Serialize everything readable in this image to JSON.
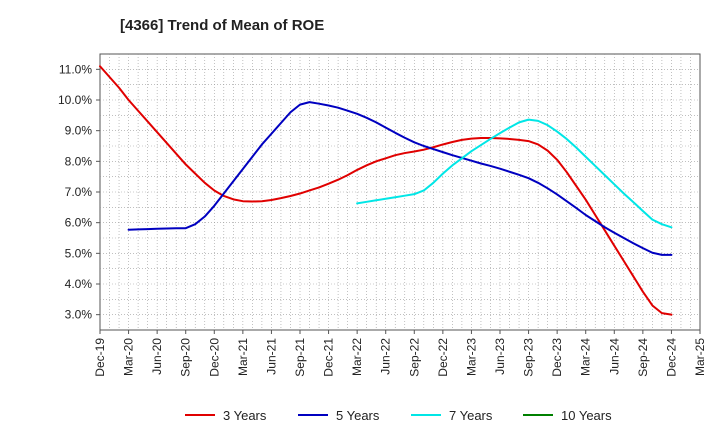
{
  "chart_data": {
    "type": "line",
    "title": "[4366]  Trend of Mean of ROE",
    "xlabel": "",
    "ylabel": "",
    "x_ticks": [
      "Dec-19",
      "Mar-20",
      "Jun-20",
      "Sep-20",
      "Dec-20",
      "Mar-21",
      "Jun-21",
      "Sep-21",
      "Dec-21",
      "Mar-22",
      "Jun-22",
      "Sep-22",
      "Dec-22",
      "Mar-23",
      "Jun-23",
      "Sep-23",
      "Dec-23",
      "Mar-24",
      "Jun-24",
      "Sep-24",
      "Dec-24",
      "Mar-25"
    ],
    "y_ticks": [
      "3.0%",
      "4.0%",
      "5.0%",
      "6.0%",
      "7.0%",
      "8.0%",
      "9.0%",
      "10.0%",
      "11.0%"
    ],
    "ylim": [
      2.5,
      11.5
    ],
    "grid": true,
    "legend_position": "bottom",
    "series": [
      {
        "name": "3 Years",
        "color": "#e00000",
        "points": [
          [
            "Dec-19",
            11.1
          ],
          [
            "Jan-20",
            10.75
          ],
          [
            "Feb-20",
            10.4
          ],
          [
            "Mar-20",
            10.0
          ],
          [
            "Apr-20",
            9.65
          ],
          [
            "May-20",
            9.3
          ],
          [
            "Jun-20",
            8.95
          ],
          [
            "Jul-20",
            8.6
          ],
          [
            "Aug-20",
            8.25
          ],
          [
            "Sep-20",
            7.9
          ],
          [
            "Oct-20",
            7.6
          ],
          [
            "Nov-20",
            7.3
          ],
          [
            "Dec-20",
            7.05
          ],
          [
            "Jan-21",
            6.87
          ],
          [
            "Feb-21",
            6.76
          ],
          [
            "Mar-21",
            6.7
          ],
          [
            "Apr-21",
            6.69
          ],
          [
            "May-21",
            6.7
          ],
          [
            "Jun-21",
            6.74
          ],
          [
            "Jul-21",
            6.8
          ],
          [
            "Aug-21",
            6.87
          ],
          [
            "Sep-21",
            6.95
          ],
          [
            "Oct-21",
            7.05
          ],
          [
            "Nov-21",
            7.15
          ],
          [
            "Dec-21",
            7.27
          ],
          [
            "Jan-22",
            7.4
          ],
          [
            "Feb-22",
            7.55
          ],
          [
            "Mar-22",
            7.72
          ],
          [
            "Apr-22",
            7.87
          ],
          [
            "May-22",
            8.0
          ],
          [
            "Jun-22",
            8.1
          ],
          [
            "Jul-22",
            8.2
          ],
          [
            "Aug-22",
            8.27
          ],
          [
            "Sep-22",
            8.32
          ],
          [
            "Oct-22",
            8.38
          ],
          [
            "Nov-22",
            8.46
          ],
          [
            "Dec-22",
            8.55
          ],
          [
            "Jan-23",
            8.63
          ],
          [
            "Feb-23",
            8.7
          ],
          [
            "Mar-23",
            8.74
          ],
          [
            "Apr-23",
            8.76
          ],
          [
            "May-23",
            8.76
          ],
          [
            "Jun-23",
            8.75
          ],
          [
            "Jul-23",
            8.73
          ],
          [
            "Aug-23",
            8.7
          ],
          [
            "Sep-23",
            8.66
          ],
          [
            "Oct-23",
            8.55
          ],
          [
            "Nov-23",
            8.35
          ],
          [
            "Dec-23",
            8.05
          ],
          [
            "Jan-24",
            7.65
          ],
          [
            "Feb-24",
            7.2
          ],
          [
            "Mar-24",
            6.75
          ],
          [
            "Apr-24",
            6.25
          ],
          [
            "May-24",
            5.75
          ],
          [
            "Jun-24",
            5.25
          ],
          [
            "Jul-24",
            4.75
          ],
          [
            "Aug-24",
            4.25
          ],
          [
            "Sep-24",
            3.75
          ],
          [
            "Oct-24",
            3.3
          ],
          [
            "Nov-24",
            3.05
          ],
          [
            "Dec-24",
            3.0
          ]
        ]
      },
      {
        "name": "5 Years",
        "color": "#0000c0",
        "points": [
          [
            "Mar-20",
            5.77
          ],
          [
            "Apr-20",
            5.78
          ],
          [
            "May-20",
            5.79
          ],
          [
            "Jun-20",
            5.8
          ],
          [
            "Jul-20",
            5.81
          ],
          [
            "Aug-20",
            5.82
          ],
          [
            "Sep-20",
            5.82
          ],
          [
            "Oct-20",
            5.95
          ],
          [
            "Nov-20",
            6.2
          ],
          [
            "Dec-20",
            6.55
          ],
          [
            "Jan-21",
            6.95
          ],
          [
            "Feb-21",
            7.35
          ],
          [
            "Mar-21",
            7.75
          ],
          [
            "Apr-21",
            8.15
          ],
          [
            "May-21",
            8.55
          ],
          [
            "Jun-21",
            8.9
          ],
          [
            "Jul-21",
            9.25
          ],
          [
            "Aug-21",
            9.6
          ],
          [
            "Sep-21",
            9.85
          ],
          [
            "Oct-21",
            9.93
          ],
          [
            "Nov-21",
            9.88
          ],
          [
            "Dec-21",
            9.82
          ],
          [
            "Jan-22",
            9.75
          ],
          [
            "Feb-22",
            9.65
          ],
          [
            "Mar-22",
            9.55
          ],
          [
            "Apr-22",
            9.42
          ],
          [
            "May-22",
            9.27
          ],
          [
            "Jun-22",
            9.1
          ],
          [
            "Jul-22",
            8.93
          ],
          [
            "Aug-22",
            8.77
          ],
          [
            "Sep-22",
            8.62
          ],
          [
            "Oct-22",
            8.5
          ],
          [
            "Nov-22",
            8.4
          ],
          [
            "Dec-22",
            8.3
          ],
          [
            "Jan-23",
            8.2
          ],
          [
            "Feb-23",
            8.11
          ],
          [
            "Mar-23",
            8.02
          ],
          [
            "Apr-23",
            7.93
          ],
          [
            "May-23",
            7.85
          ],
          [
            "Jun-23",
            7.76
          ],
          [
            "Jul-23",
            7.66
          ],
          [
            "Aug-23",
            7.56
          ],
          [
            "Sep-23",
            7.45
          ],
          [
            "Oct-23",
            7.3
          ],
          [
            "Nov-23",
            7.12
          ],
          [
            "Dec-23",
            6.92
          ],
          [
            "Jan-24",
            6.7
          ],
          [
            "Feb-24",
            6.48
          ],
          [
            "Mar-24",
            6.25
          ],
          [
            "Apr-24",
            6.05
          ],
          [
            "May-24",
            5.85
          ],
          [
            "Jun-24",
            5.67
          ],
          [
            "Jul-24",
            5.5
          ],
          [
            "Aug-24",
            5.33
          ],
          [
            "Sep-24",
            5.17
          ],
          [
            "Oct-24",
            5.02
          ],
          [
            "Nov-24",
            4.95
          ],
          [
            "Dec-24",
            4.95
          ]
        ]
      },
      {
        "name": "7 Years",
        "color": "#00e6e6",
        "points": [
          [
            "Mar-22",
            6.63
          ],
          [
            "Apr-22",
            6.68
          ],
          [
            "May-22",
            6.73
          ],
          [
            "Jun-22",
            6.78
          ],
          [
            "Jul-22",
            6.83
          ],
          [
            "Aug-22",
            6.88
          ],
          [
            "Sep-22",
            6.93
          ],
          [
            "Oct-22",
            7.05
          ],
          [
            "Nov-22",
            7.3
          ],
          [
            "Dec-22",
            7.6
          ],
          [
            "Jan-23",
            7.87
          ],
          [
            "Feb-23",
            8.1
          ],
          [
            "Mar-23",
            8.33
          ],
          [
            "Apr-23",
            8.53
          ],
          [
            "May-23",
            8.73
          ],
          [
            "Jun-23",
            8.92
          ],
          [
            "Jul-23",
            9.1
          ],
          [
            "Aug-23",
            9.27
          ],
          [
            "Sep-23",
            9.36
          ],
          [
            "Oct-23",
            9.32
          ],
          [
            "Nov-23",
            9.18
          ],
          [
            "Dec-23",
            8.97
          ],
          [
            "Jan-24",
            8.73
          ],
          [
            "Feb-24",
            8.45
          ],
          [
            "Mar-24",
            8.15
          ],
          [
            "Apr-24",
            7.85
          ],
          [
            "May-24",
            7.55
          ],
          [
            "Jun-24",
            7.25
          ],
          [
            "Jul-24",
            6.95
          ],
          [
            "Aug-24",
            6.67
          ],
          [
            "Sep-24",
            6.38
          ],
          [
            "Oct-24",
            6.1
          ],
          [
            "Nov-24",
            5.95
          ],
          [
            "Dec-24",
            5.85
          ]
        ]
      },
      {
        "name": "10 Years",
        "color": "#008000",
        "points": []
      }
    ]
  }
}
